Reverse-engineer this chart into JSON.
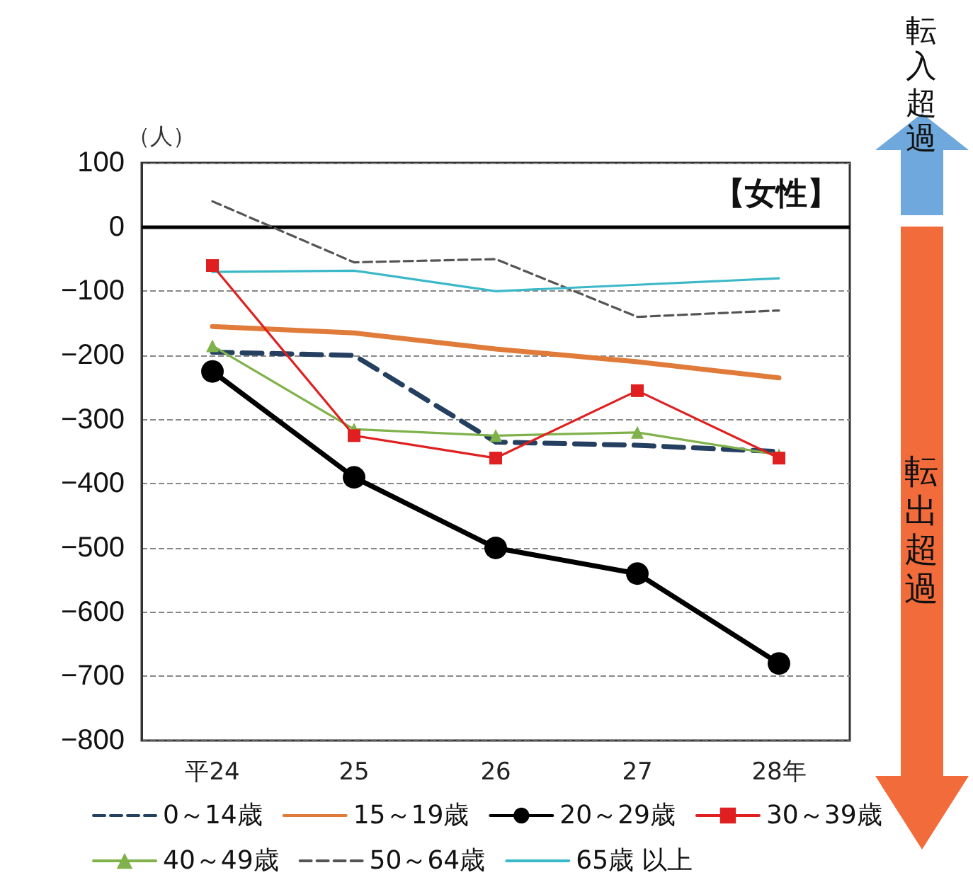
{
  "chart_data": {
    "type": "line",
    "ylabel": "（人）",
    "categories": [
      "平24",
      "25",
      "26",
      "27",
      "28年"
    ],
    "series": [
      {
        "name": "0～14歳",
        "color": "#243f60",
        "values": [
          -195,
          -200,
          -335,
          -340,
          -350
        ],
        "line_style": "dashed",
        "marker": "none"
      },
      {
        "name": "15～19歳",
        "color": "#e07b39",
        "values": [
          -155,
          -165,
          -190,
          -210,
          -235
        ],
        "line_style": "solid",
        "marker": "none"
      },
      {
        "name": "20～29歳",
        "color": "#000000",
        "values": [
          -225,
          -390,
          -500,
          -540,
          -680
        ],
        "line_style": "solid",
        "marker": "circle"
      },
      {
        "name": "30～39歳",
        "color": "#e02020",
        "values": [
          -60,
          -325,
          -360,
          -255,
          -360
        ],
        "line_style": "solid",
        "marker": "square"
      },
      {
        "name": "40～49歳",
        "color": "#7fb24a",
        "values": [
          -185,
          -315,
          -325,
          -320,
          -355
        ],
        "line_style": "solid",
        "marker": "triangle"
      },
      {
        "name": "50～64歳",
        "color": "#555555",
        "values": [
          40,
          -55,
          -50,
          -140,
          -130
        ],
        "line_style": "dashed",
        "marker": "none"
      },
      {
        "name": "65歳 以上",
        "color": "#3bb8c8",
        "values": [
          -70,
          -68,
          -100,
          -90,
          -80
        ],
        "line_style": "solid",
        "marker": "none"
      }
    ],
    "ylim": [
      -800,
      100
    ],
    "yticks": [
      -800,
      -700,
      -600,
      -500,
      -400,
      -300,
      -200,
      -100,
      0,
      100
    ],
    "grid": "y",
    "legend": "bottom",
    "ref_lines": [
      {
        "axis": "y",
        "value": 0,
        "color": "#000000",
        "line_style": "solid"
      }
    ],
    "annotations": [
      "【女性】",
      "転入超過",
      "転出超過"
    ]
  }
}
